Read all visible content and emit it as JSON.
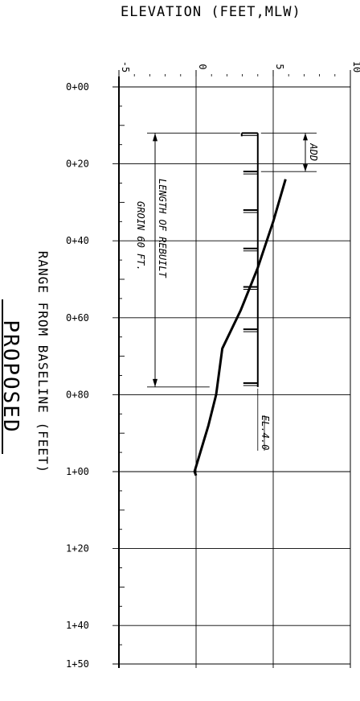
{
  "figure": {
    "elevation_axis_title": "ELEVATION (FEET,MLW)",
    "range_axis_title": "RANGE FROM BASELINE (FEET)",
    "proposed_title": "PROPOSED",
    "elevation_ticks": [
      {
        "label": "-5",
        "value": -5
      },
      {
        "label": "0",
        "value": 0
      },
      {
        "label": "5",
        "value": 5
      },
      {
        "label": "10",
        "value": 10
      }
    ],
    "range_ticks": [
      {
        "label": "0+00",
        "value": 0
      },
      {
        "label": "0+20",
        "value": 20
      },
      {
        "label": "0+40",
        "value": 40
      },
      {
        "label": "0+60",
        "value": 60
      },
      {
        "label": "0+80",
        "value": 80
      },
      {
        "label": "1+00",
        "value": 100
      },
      {
        "label": "1+20",
        "value": 120
      },
      {
        "label": "1+40",
        "value": 140
      },
      {
        "label": "1+50",
        "value": 150
      }
    ],
    "annotations": {
      "add": "ADD",
      "length_line1": "LENGTH OF REBUILT",
      "length_line2": "GROIN 60 FT.",
      "el40": "EL.4.0"
    },
    "groin_crest_elevation": 4.0,
    "groin_start_range": 12,
    "groin_end_range": 78,
    "existing_groin_start_range": 22,
    "stone_marks_range": [
      12,
      22,
      32,
      42,
      52,
      63,
      77
    ],
    "ground_profile": [
      {
        "range": 24,
        "elevation": 5.8
      },
      {
        "range": 35,
        "elevation": 5.0
      },
      {
        "range": 47,
        "elevation": 4.0
      },
      {
        "range": 58,
        "elevation": 2.9
      },
      {
        "range": 68,
        "elevation": 1.7
      },
      {
        "range": 80,
        "elevation": 1.3
      },
      {
        "range": 88,
        "elevation": 0.8
      },
      {
        "range": 100,
        "elevation": -0.1
      },
      {
        "range": 101,
        "elevation": 0.0
      }
    ]
  }
}
